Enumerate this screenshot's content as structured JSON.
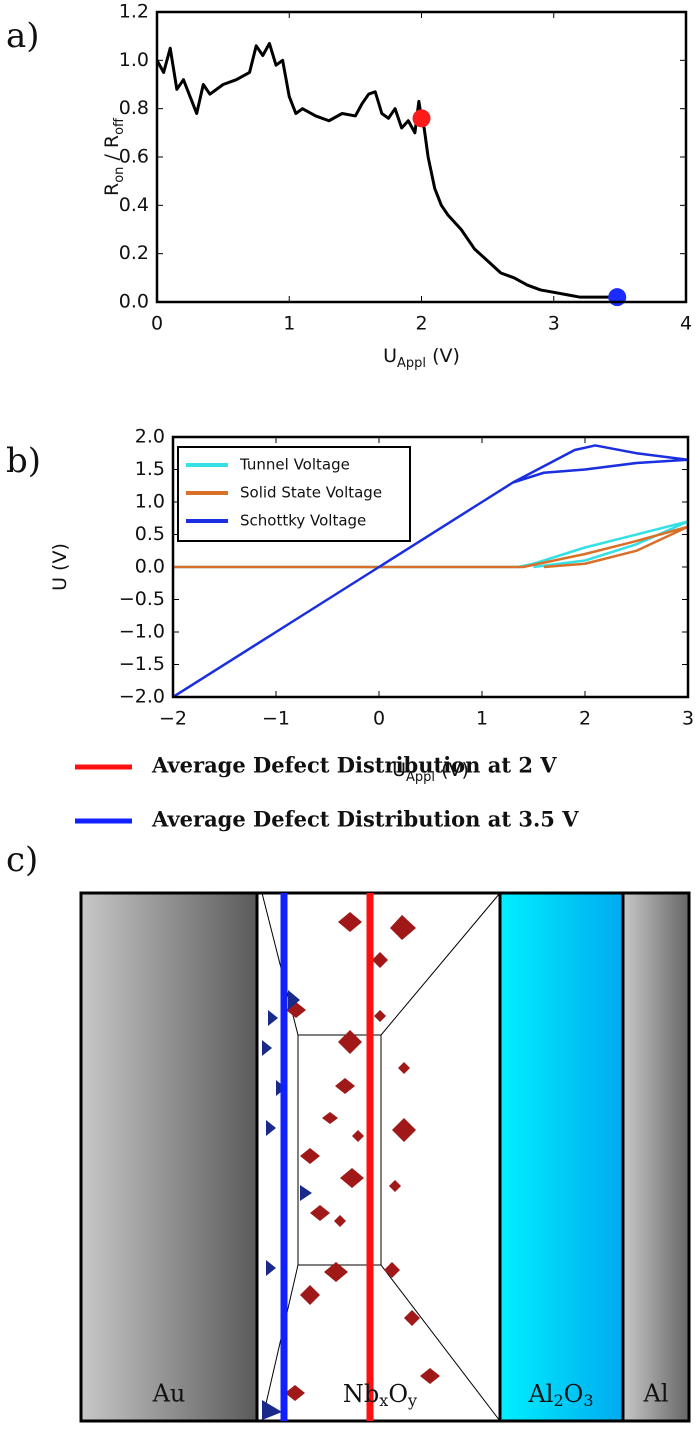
{
  "chart_data": [
    {
      "type": "line",
      "panel_label": "a)",
      "xlabel": [
        {
          "text": "U"
        },
        {
          "text": "Appl",
          "sub": true
        },
        {
          "text": " (V)"
        }
      ],
      "ylabel": [
        {
          "text": "R"
        },
        {
          "text": "on",
          "sub": true
        },
        {
          "text": " / R"
        },
        {
          "text": "off",
          "sub": true
        }
      ],
      "xlim": [
        0,
        4
      ],
      "ylim": [
        0,
        1.2
      ],
      "xticks": [
        0,
        1,
        2,
        3,
        4
      ],
      "yticks": [
        {
          "value": 0,
          "label": "0.0"
        },
        {
          "value": 0.2,
          "label": "0.2"
        },
        {
          "value": 0.4,
          "label": "0.4"
        },
        {
          "value": 0.6,
          "label": "0.6"
        },
        {
          "value": 0.8,
          "label": "0.8"
        },
        {
          "value": 1.0,
          "label": "1.0"
        },
        {
          "value": 1.2,
          "label": "1.2"
        }
      ],
      "series": [
        {
          "color": "#000000",
          "x": [
            0,
            0.05,
            0.1,
            0.15,
            0.2,
            0.25,
            0.3,
            0.35,
            0.4,
            0.5,
            0.6,
            0.7,
            0.75,
            0.8,
            0.85,
            0.9,
            0.95,
            1.0,
            1.05,
            1.1,
            1.2,
            1.3,
            1.4,
            1.5,
            1.55,
            1.6,
            1.65,
            1.7,
            1.75,
            1.8,
            1.85,
            1.9,
            1.95,
            1.98,
            2.0,
            2.02,
            2.05,
            2.1,
            2.15,
            2.2,
            2.3,
            2.4,
            2.5,
            2.6,
            2.7,
            2.8,
            2.9,
            3.0,
            3.1,
            3.2,
            3.3,
            3.4,
            3.48
          ],
          "values": [
            1.0,
            0.95,
            1.05,
            0.88,
            0.92,
            0.85,
            0.78,
            0.9,
            0.86,
            0.9,
            0.92,
            0.95,
            1.06,
            1.02,
            1.07,
            0.98,
            1.0,
            0.85,
            0.78,
            0.8,
            0.77,
            0.75,
            0.78,
            0.77,
            0.82,
            0.86,
            0.87,
            0.78,
            0.76,
            0.8,
            0.72,
            0.75,
            0.7,
            0.83,
            0.76,
            0.72,
            0.6,
            0.47,
            0.4,
            0.36,
            0.3,
            0.22,
            0.17,
            0.12,
            0.1,
            0.07,
            0.05,
            0.04,
            0.03,
            0.02,
            0.02,
            0.02,
            0.02
          ]
        }
      ],
      "markers": [
        {
          "x": 2,
          "y": 0.76,
          "color": "#ff1a1a"
        },
        {
          "x": 3.48,
          "y": 0.02,
          "color": "#1a2cff"
        }
      ]
    },
    {
      "type": "line",
      "panel_label": "b)",
      "xlabel": [
        {
          "text": "U"
        },
        {
          "text": "Appl",
          "sub": true
        },
        {
          "text": " (V)"
        }
      ],
      "ylabel": [
        {
          "text": "U (V)"
        }
      ],
      "xlim": [
        -2,
        3
      ],
      "ylim": [
        -2,
        2
      ],
      "xticks": [
        {
          "value": -2,
          "label": "−2"
        },
        {
          "value": -1,
          "label": "−1"
        },
        0,
        1,
        2,
        3
      ],
      "yticks": [
        {
          "value": -2,
          "label": "−2.0"
        },
        {
          "value": -1.5,
          "label": "−1.5"
        },
        {
          "value": -1,
          "label": "−1.0"
        },
        {
          "value": -0.5,
          "label": "−0.5"
        },
        {
          "value": 0,
          "label": "0.0"
        },
        {
          "value": 0.5,
          "label": "0.5"
        },
        {
          "value": 1,
          "label": "1.0"
        },
        {
          "value": 1.5,
          "label": "1.5"
        },
        {
          "value": 2,
          "label": "2.0"
        }
      ],
      "legend": "upper left",
      "series": [
        {
          "name": "Tunnel Voltage",
          "color": "#33e0e6",
          "x": [
            -2,
            1.35,
            1.5,
            2,
            2.5,
            3,
            2.5,
            2,
            1.5
          ],
          "values": [
            0,
            0,
            0.05,
            0.3,
            0.5,
            0.7,
            0.35,
            0.1,
            0
          ]
        },
        {
          "name": "Solid State Voltage",
          "color": "#d9702a",
          "x": [
            -2,
            1.4,
            2,
            2.5,
            3,
            2.5,
            2,
            1.6
          ],
          "values": [
            0,
            0,
            0.2,
            0.4,
            0.62,
            0.25,
            0.05,
            0
          ]
        },
        {
          "name": "Schottky Voltage",
          "color": "#1a2fe0",
          "x": [
            -2,
            -1,
            0,
            1,
            1.3,
            1.6,
            1.9,
            2.1,
            2.5,
            3,
            2.5,
            2,
            1.6,
            1.3
          ],
          "values": [
            -2,
            -1,
            0,
            1,
            1.3,
            1.55,
            1.8,
            1.87,
            1.75,
            1.65,
            1.6,
            1.5,
            1.45,
            1.3
          ]
        }
      ]
    }
  ],
  "diagram": {
    "panel_label": "c)",
    "legend": [
      {
        "text": "Average Defect Distribution at 2 V",
        "color": "#ff1010"
      },
      {
        "text": "Average Defect Distribution at 3.5 V",
        "color": "#1020ff"
      }
    ],
    "layers": {
      "au": "Au",
      "nb": [
        "Nb",
        "x",
        "O",
        "y"
      ],
      "al2o3": [
        "Al",
        "2",
        "O",
        "3"
      ],
      "al": "Al"
    }
  }
}
